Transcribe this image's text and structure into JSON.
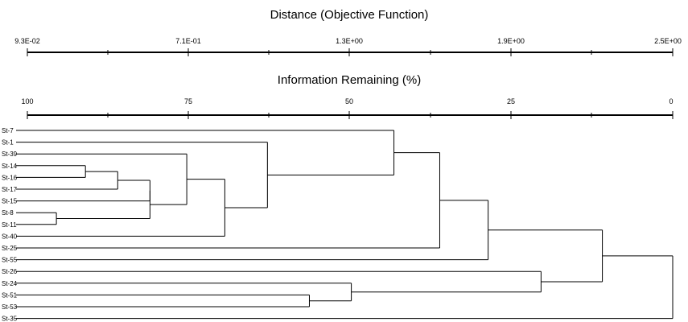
{
  "axes": {
    "distance": {
      "title": "Distance (Objective Function)",
      "tick_labels": [
        "9.3E-02",
        "7.1E-01",
        "1.3E+00",
        "1.9E+00",
        "2.5E+00"
      ]
    },
    "information": {
      "title": "Information Remaining (%)",
      "tick_labels": [
        "100",
        "75",
        "50",
        "25",
        "0"
      ]
    }
  },
  "chart_data": {
    "type": "dendrogram",
    "scale": {
      "info_max": 100,
      "info_min": 0
    },
    "leaves": [
      "St-7",
      "St-1",
      "St-39",
      "St-14",
      "St-16",
      "St-17",
      "St-15",
      "St-8",
      "St-11",
      "St-40",
      "St-25",
      "St-55",
      "St-26",
      "St-24",
      "St-51",
      "St-53",
      "St-35"
    ],
    "merges": [
      {
        "id": "m1",
        "children": [
          "St-8",
          "St-11"
        ],
        "info": 95.5
      },
      {
        "id": "m2",
        "children": [
          "St-14",
          "St-16"
        ],
        "info": 91.0
      },
      {
        "id": "m3",
        "children": [
          "m2",
          "St-17"
        ],
        "info": 86.0
      },
      {
        "id": "m4",
        "children": [
          "m3",
          "St-15"
        ],
        "info": 81.0
      },
      {
        "id": "m5",
        "children": [
          "m4",
          "m1"
        ],
        "info": 81.0
      },
      {
        "id": "m6",
        "children": [
          "St-39",
          "m5"
        ],
        "info": 75.3
      },
      {
        "id": "m7",
        "children": [
          "m6",
          "St-40"
        ],
        "info": 69.4
      },
      {
        "id": "m8",
        "children": [
          "St-1",
          "m7"
        ],
        "info": 62.8
      },
      {
        "id": "m9",
        "children": [
          "St-7",
          "m8"
        ],
        "info": 43.2
      },
      {
        "id": "m10",
        "children": [
          "St-51",
          "St-53"
        ],
        "info": 56.3
      },
      {
        "id": "m11",
        "children": [
          "St-24",
          "m10"
        ],
        "info": 49.8
      },
      {
        "id": "m12",
        "children": [
          "m9",
          "St-25"
        ],
        "info": 36.1
      },
      {
        "id": "m13",
        "children": [
          "m12",
          "St-55"
        ],
        "info": 28.6
      },
      {
        "id": "m14",
        "children": [
          "St-26",
          "m11"
        ],
        "info": 20.4
      },
      {
        "id": "m15",
        "children": [
          "m13",
          "m14"
        ],
        "info": 10.9
      },
      {
        "id": "m16",
        "children": [
          "m15",
          "St-35"
        ],
        "info": 0
      }
    ]
  }
}
